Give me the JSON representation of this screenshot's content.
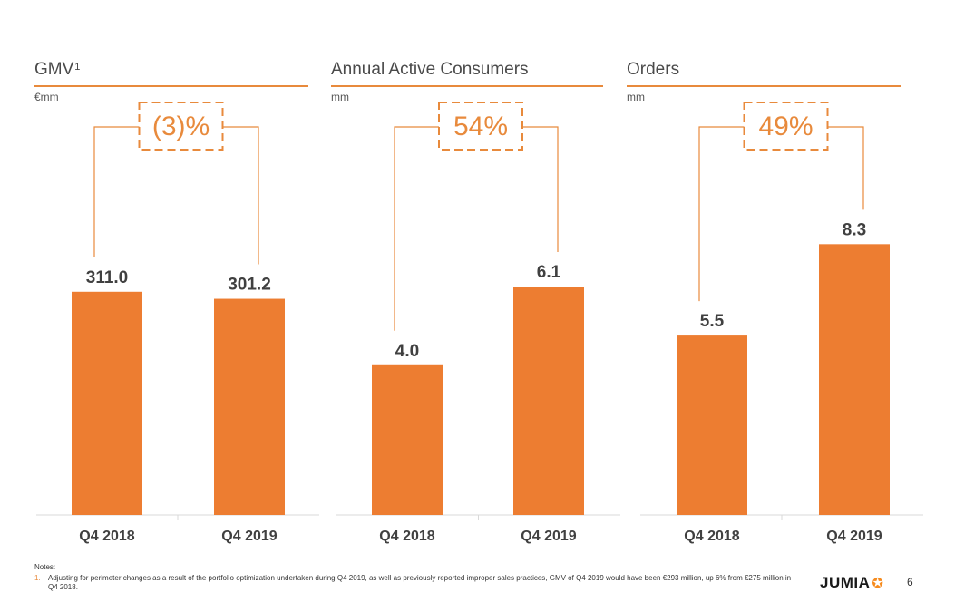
{
  "colors": {
    "bar": "#ED7D31",
    "accent": "#E88A3C",
    "label": "#404040"
  },
  "chart_data": [
    {
      "type": "bar",
      "title": "GMV",
      "title_superscript": "1",
      "unit": "€mm",
      "categories": [
        "Q4 2018",
        "Q4 2019"
      ],
      "values": [
        311.0,
        301.2
      ],
      "value_labels": [
        "311.0",
        "301.2"
      ],
      "change_label": "(3)%",
      "ylim": [
        0,
        600
      ]
    },
    {
      "type": "bar",
      "title": "Annual Active Consumers",
      "unit": "mm",
      "categories": [
        "Q4 2018",
        "Q4 2019"
      ],
      "values": [
        4.0,
        6.1
      ],
      "value_labels": [
        "4.0",
        "6.1"
      ],
      "change_label": "54%",
      "ylim": [
        0,
        11.5
      ]
    },
    {
      "type": "bar",
      "title": "Orders",
      "unit": "mm",
      "categories": [
        "Q4 2018",
        "Q4 2019"
      ],
      "values": [
        5.5,
        8.3
      ],
      "value_labels": [
        "5.5",
        "8.3"
      ],
      "change_label": "49%",
      "ylim": [
        0,
        13.2
      ]
    }
  ],
  "notes": {
    "label": "Notes:",
    "items": [
      {
        "number": "1.",
        "text": "Adjusting for perimeter changes as a result of the portfolio optimization undertaken during Q4 2019, as well as previously reported improper sales practices, GMV of Q4 2019 would have been €293 million, up 6% from €275 million in Q4 2018."
      }
    ]
  },
  "footer": {
    "logo": "JUMIA",
    "page_number": "6"
  }
}
